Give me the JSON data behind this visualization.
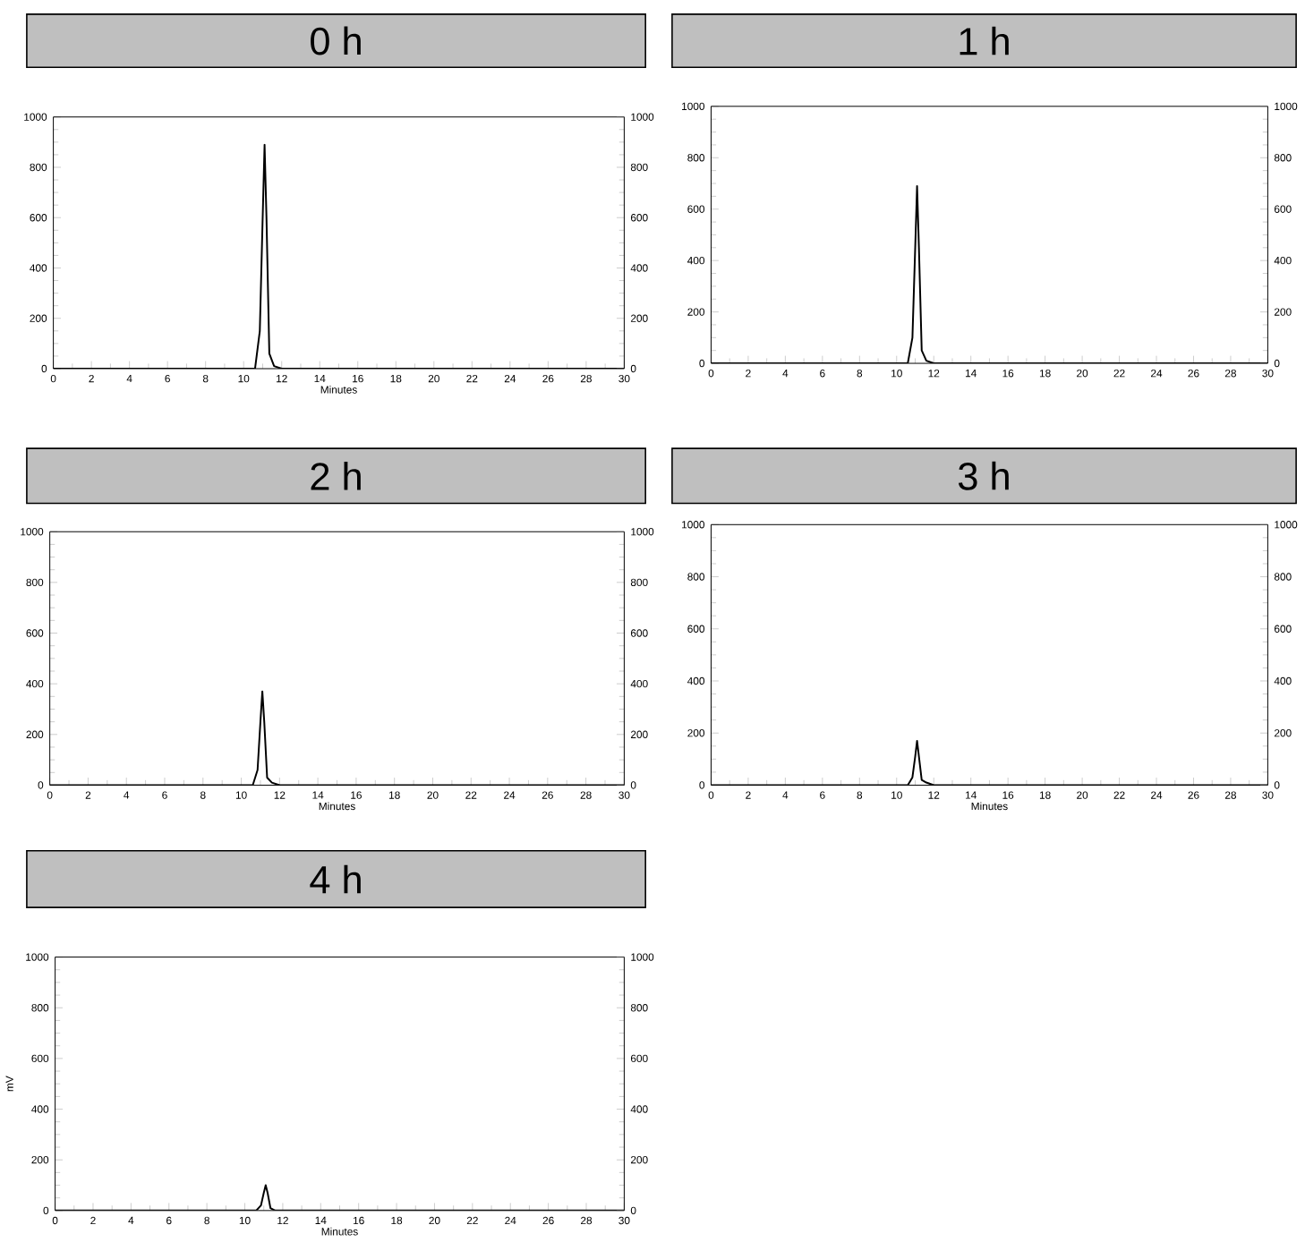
{
  "chart_data": [
    {
      "type": "line",
      "title": "0 h",
      "xlabel": "Minutes",
      "xlim": [
        0,
        30
      ],
      "xticks": [
        0,
        2,
        4,
        6,
        8,
        10,
        12,
        14,
        16,
        18,
        20,
        22,
        24,
        26,
        28,
        30
      ],
      "ylim": [
        0,
        1000
      ],
      "yticks": [
        0,
        200,
        400,
        600,
        800,
        1000
      ],
      "y2lim": [
        0,
        1000
      ],
      "y2ticks": [
        0,
        200,
        400,
        600,
        800,
        1000
      ],
      "series": [
        {
          "color": "#000000",
          "x": [
            0,
            10.6,
            10.85,
            11.0,
            11.1,
            11.2,
            11.35,
            11.6,
            12.0,
            30
          ],
          "values": [
            0,
            0,
            150,
            600,
            890,
            600,
            60,
            10,
            0,
            0
          ]
        }
      ]
    },
    {
      "type": "line",
      "title": "1 h",
      "xlim": [
        0,
        30
      ],
      "xticks": [
        0,
        2,
        4,
        6,
        8,
        10,
        12,
        14,
        16,
        18,
        20,
        22,
        24,
        26,
        28,
        30
      ],
      "ylim": [
        0,
        1000
      ],
      "yticks": [
        0,
        200,
        400,
        600,
        800,
        1000
      ],
      "y2lim": [
        0,
        1000
      ],
      "y2ticks": [
        0,
        200,
        400,
        600,
        800,
        1000
      ],
      "series": [
        {
          "color": "#000000",
          "x": [
            0,
            10.6,
            10.85,
            11.0,
            11.1,
            11.2,
            11.35,
            11.6,
            12.0,
            30
          ],
          "values": [
            0,
            0,
            100,
            450,
            690,
            450,
            50,
            10,
            0,
            0
          ]
        }
      ]
    },
    {
      "type": "line",
      "title": "2 h",
      "xlabel": "Minutes",
      "xlim": [
        0,
        30
      ],
      "xticks": [
        0,
        2,
        4,
        6,
        8,
        10,
        12,
        14,
        16,
        18,
        20,
        22,
        24,
        26,
        28,
        30
      ],
      "ylim": [
        0,
        1000
      ],
      "yticks": [
        0,
        200,
        400,
        600,
        800,
        1000
      ],
      "y2lim": [
        0,
        1000
      ],
      "y2ticks": [
        0,
        200,
        400,
        600,
        800,
        1000
      ],
      "series": [
        {
          "color": "#000000",
          "x": [
            0,
            10.6,
            10.85,
            11.0,
            11.1,
            11.2,
            11.35,
            11.6,
            12.0,
            30
          ],
          "values": [
            0,
            0,
            60,
            250,
            370,
            250,
            30,
            10,
            0,
            0
          ]
        }
      ]
    },
    {
      "type": "line",
      "title": "3 h",
      "xlabel": "Minutes",
      "xlim": [
        0,
        30
      ],
      "xticks": [
        0,
        2,
        4,
        6,
        8,
        10,
        12,
        14,
        16,
        18,
        20,
        22,
        24,
        26,
        28,
        30
      ],
      "ylim": [
        0,
        1000
      ],
      "yticks": [
        0,
        200,
        400,
        600,
        800,
        1000
      ],
      "y2lim": [
        0,
        1000
      ],
      "y2ticks": [
        0,
        200,
        400,
        600,
        800,
        1000
      ],
      "series": [
        {
          "color": "#000000",
          "x": [
            0,
            10.6,
            10.85,
            11.0,
            11.1,
            11.2,
            11.35,
            11.6,
            12.0,
            30
          ],
          "values": [
            0,
            0,
            30,
            110,
            170,
            110,
            20,
            10,
            0,
            0
          ]
        }
      ]
    },
    {
      "type": "line",
      "title": "4 h",
      "xlabel": "Minutes",
      "ylabel": "mV",
      "xlim": [
        0,
        30
      ],
      "xticks": [
        0,
        2,
        4,
        6,
        8,
        10,
        12,
        14,
        16,
        18,
        20,
        22,
        24,
        26,
        28,
        30
      ],
      "ylim": [
        0,
        1000
      ],
      "yticks": [
        0,
        200,
        400,
        600,
        800,
        1000
      ],
      "y2lim": [
        0,
        1000
      ],
      "y2ticks": [
        0,
        200,
        400,
        600,
        800,
        1000
      ],
      "series": [
        {
          "color": "#000000",
          "x": [
            0,
            10.6,
            10.85,
            11.0,
            11.1,
            11.2,
            11.35,
            11.6,
            12.0,
            30
          ],
          "values": [
            0,
            0,
            20,
            70,
            100,
            70,
            10,
            0,
            0,
            0
          ]
        }
      ]
    }
  ]
}
